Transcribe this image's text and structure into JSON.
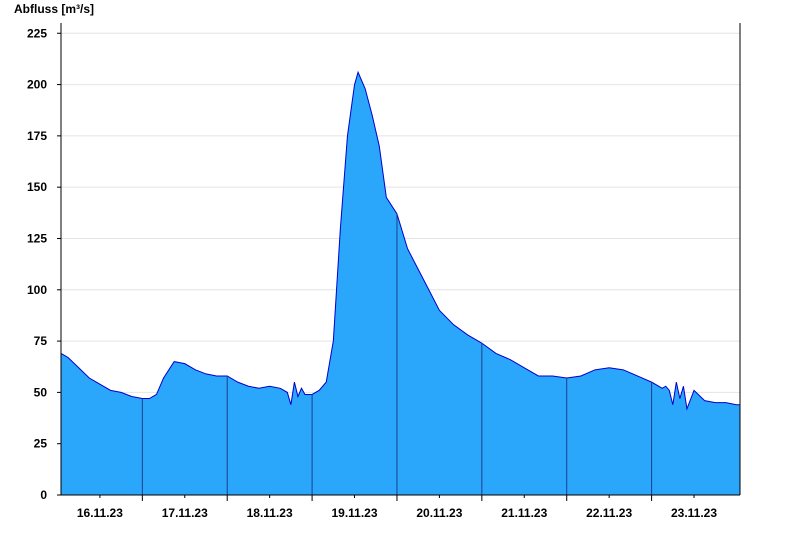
{
  "chart_data": {
    "type": "area",
    "ylabel": "Abfluss [m³/s]",
    "xlabel": "",
    "title": "",
    "ylim": [
      0,
      230
    ],
    "yticks": [
      0,
      25,
      50,
      75,
      100,
      125,
      150,
      175,
      200,
      225
    ],
    "xlim": [
      "2023-11-15T13:00",
      "2023-11-23T13:00"
    ],
    "xtick_labels": [
      "16.11.23",
      "17.11.23",
      "18.11.23",
      "19.11.23",
      "20.11.23",
      "21.11.23",
      "22.11.23",
      "23.11.23"
    ],
    "xtick_label_positions": [
      "2023-11-16T00:00",
      "2023-11-17T00:00",
      "2023-11-18T00:00",
      "2023-11-19T00:00",
      "2023-11-20T00:00",
      "2023-11-21T00:00",
      "2023-11-22T00:00",
      "2023-11-23T00:00"
    ],
    "day_boundaries": [
      "2023-11-16T12:00",
      "2023-11-17T12:00",
      "2023-11-18T12:00",
      "2023-11-19T12:00",
      "2023-11-20T12:00",
      "2023-11-21T12:00",
      "2023-11-22T12:00"
    ],
    "grid": true,
    "legend": "none",
    "colors": {
      "fill": "#2aa6fb",
      "line": "#0000cc",
      "grid": "#e4e4e4",
      "axis": "#000000",
      "divider": "#1d3f8c"
    },
    "series": [
      {
        "x": [
          "2023-11-15T13:00",
          "2023-11-15T15:00",
          "2023-11-15T18:00",
          "2023-11-15T21:00",
          "2023-11-16T00:00",
          "2023-11-16T03:00",
          "2023-11-16T06:00",
          "2023-11-16T09:00",
          "2023-11-16T12:00",
          "2023-11-16T14:00",
          "2023-11-16T16:00",
          "2023-11-16T18:00",
          "2023-11-16T21:00",
          "2023-11-17T00:00",
          "2023-11-17T03:00",
          "2023-11-17T06:00",
          "2023-11-17T09:00",
          "2023-11-17T12:00",
          "2023-11-17T15:00",
          "2023-11-17T18:00",
          "2023-11-17T21:00",
          "2023-11-18T00:00",
          "2023-11-18T03:00",
          "2023-11-18T05:00",
          "2023-11-18T06:00",
          "2023-11-18T07:00",
          "2023-11-18T08:00",
          "2023-11-18T09:00",
          "2023-11-18T10:00",
          "2023-11-18T12:00",
          "2023-11-18T14:00",
          "2023-11-18T16:00",
          "2023-11-18T18:00",
          "2023-11-18T20:00",
          "2023-11-18T22:00",
          "2023-11-19T00:00",
          "2023-11-19T01:00",
          "2023-11-19T03:00",
          "2023-11-19T05:00",
          "2023-11-19T07:00",
          "2023-11-19T09:00",
          "2023-11-19T12:00",
          "2023-11-19T15:00",
          "2023-11-19T18:00",
          "2023-11-19T21:00",
          "2023-11-20T00:00",
          "2023-11-20T04:00",
          "2023-11-20T08:00",
          "2023-11-20T12:00",
          "2023-11-20T16:00",
          "2023-11-20T20:00",
          "2023-11-21T00:00",
          "2023-11-21T04:00",
          "2023-11-21T08:00",
          "2023-11-21T12:00",
          "2023-11-21T16:00",
          "2023-11-21T20:00",
          "2023-11-22T00:00",
          "2023-11-22T04:00",
          "2023-11-22T08:00",
          "2023-11-22T12:00",
          "2023-11-22T14:00",
          "2023-11-22T15:00",
          "2023-11-22T16:00",
          "2023-11-22T17:00",
          "2023-11-22T18:00",
          "2023-11-22T19:00",
          "2023-11-22T20:00",
          "2023-11-22T21:00",
          "2023-11-22T22:00",
          "2023-11-23T00:00",
          "2023-11-23T03:00",
          "2023-11-23T06:00",
          "2023-11-23T09:00",
          "2023-11-23T12:00",
          "2023-11-23T13:00"
        ],
        "y": [
          69,
          67,
          62,
          57,
          54,
          51,
          50,
          48,
          47,
          47,
          49,
          57,
          65,
          64,
          61,
          59,
          58,
          58,
          55,
          53,
          52,
          53,
          52,
          50,
          44,
          55,
          48,
          52,
          49,
          49,
          51,
          55,
          75,
          130,
          175,
          200,
          206,
          198,
          185,
          170,
          145,
          137,
          120,
          110,
          100,
          90,
          83,
          78,
          74,
          69,
          66,
          62,
          58,
          58,
          57,
          58,
          61,
          62,
          61,
          58,
          55,
          53,
          52,
          53,
          51,
          44,
          55,
          47,
          53,
          42,
          51,
          46,
          45,
          45,
          44,
          44
        ]
      }
    ]
  }
}
